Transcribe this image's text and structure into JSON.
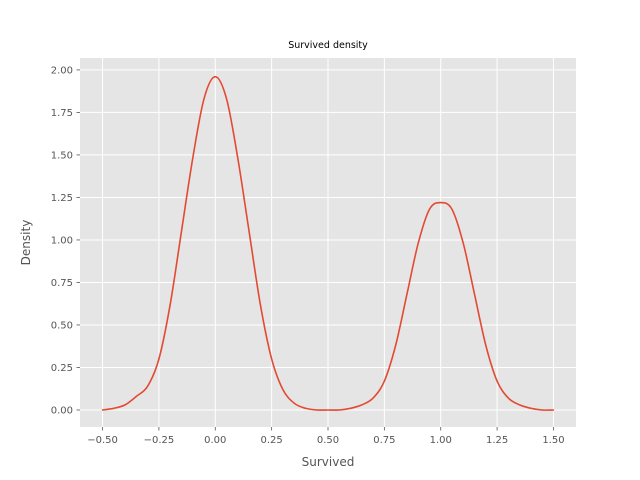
{
  "chart_data": {
    "type": "line",
    "title": "Survived density",
    "xlabel": "Survived",
    "ylabel": "Density",
    "xlim": [
      -0.6,
      1.6
    ],
    "ylim": [
      -0.1,
      2.07
    ],
    "xticks": [
      -0.5,
      -0.25,
      0.0,
      0.25,
      0.5,
      0.75,
      1.0,
      1.25,
      1.5
    ],
    "xtick_labels": [
      "−0.50",
      "−0.25",
      "0.00",
      "0.25",
      "0.50",
      "0.75",
      "1.00",
      "1.25",
      "1.50"
    ],
    "yticks": [
      0.0,
      0.25,
      0.5,
      0.75,
      1.0,
      1.25,
      1.5,
      1.75,
      2.0
    ],
    "ytick_labels": [
      "0.00",
      "0.25",
      "0.50",
      "0.75",
      "1.00",
      "1.25",
      "1.50",
      "1.75",
      "2.00"
    ],
    "grid": true,
    "series": [
      {
        "color": "#e24a33",
        "x": [
          -0.5,
          -0.45,
          -0.4,
          -0.35,
          -0.3,
          -0.25,
          -0.2,
          -0.15,
          -0.1,
          -0.05,
          0.0,
          0.05,
          0.1,
          0.15,
          0.2,
          0.25,
          0.3,
          0.35,
          0.4,
          0.45,
          0.5,
          0.55,
          0.6,
          0.65,
          0.7,
          0.75,
          0.8,
          0.85,
          0.9,
          0.95,
          1.0,
          1.05,
          1.1,
          1.15,
          1.2,
          1.25,
          1.3,
          1.35,
          1.4,
          1.45,
          1.5
        ],
        "y": [
          0.0,
          0.01,
          0.03,
          0.08,
          0.14,
          0.3,
          0.62,
          1.05,
          1.48,
          1.83,
          1.96,
          1.83,
          1.48,
          1.05,
          0.62,
          0.3,
          0.12,
          0.04,
          0.01,
          0.0,
          0.0,
          0.0,
          0.01,
          0.03,
          0.07,
          0.17,
          0.38,
          0.68,
          0.98,
          1.18,
          1.22,
          1.18,
          0.98,
          0.68,
          0.38,
          0.17,
          0.07,
          0.03,
          0.01,
          0.0,
          0.0
        ]
      }
    ]
  }
}
